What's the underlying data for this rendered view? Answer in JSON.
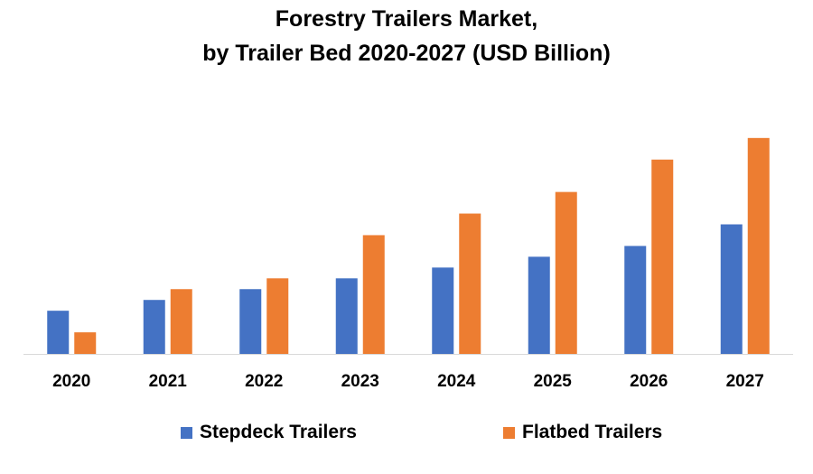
{
  "chart_data": {
    "type": "bar",
    "title": "Forestry Trailers Market,",
    "subtitle": "by Trailer Bed 2020-2027 (USD Billion)",
    "categories": [
      "2020",
      "2021",
      "2022",
      "2023",
      "2024",
      "2025",
      "2026",
      "2027"
    ],
    "series": [
      {
        "name": "Stepdeck Trailers",
        "color": "#4472C4",
        "values": [
          2.0,
          2.5,
          3.0,
          3.5,
          4.0,
          4.5,
          5.0,
          6.0
        ]
      },
      {
        "name": "Flatbed Trailers",
        "color": "#ED7D31",
        "values": [
          1.0,
          3.0,
          3.5,
          5.5,
          6.5,
          7.5,
          9.0,
          10.0
        ]
      }
    ],
    "ylim": [
      0,
      12
    ],
    "xlabel": "",
    "ylabel": "",
    "grid": false,
    "legend_position": "bottom"
  }
}
